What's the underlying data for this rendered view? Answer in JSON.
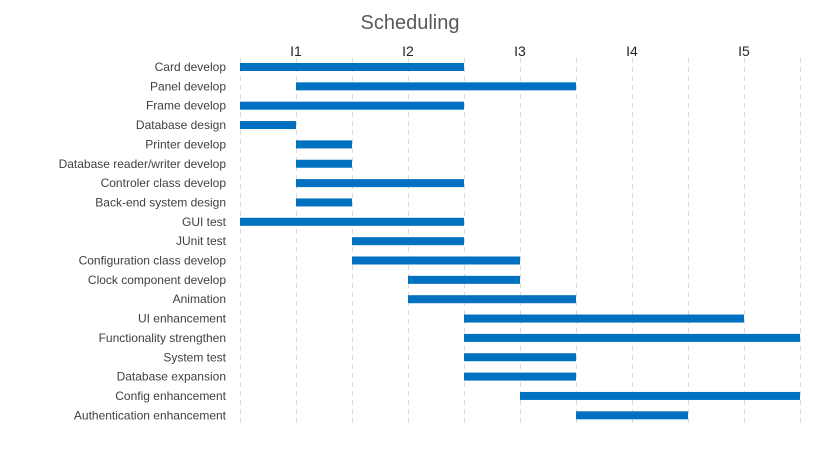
{
  "chart_data": {
    "type": "bar",
    "orientation": "horizontal-gantt",
    "title": "Scheduling",
    "xlabel": "",
    "ylabel": "",
    "x_ticks": [
      "I1",
      "I2",
      "I3",
      "I4",
      "I5"
    ],
    "xlim": [
      0,
      10
    ],
    "grid": true,
    "legend": "none",
    "bar_color": "#0070C0",
    "tasks": [
      {
        "label": "Card develop",
        "start": 0,
        "end": 4
      },
      {
        "label": "Panel develop",
        "start": 1,
        "end": 6
      },
      {
        "label": "Frame develop",
        "start": 0,
        "end": 4
      },
      {
        "label": "Database design",
        "start": 0,
        "end": 1
      },
      {
        "label": "Printer develop",
        "start": 1,
        "end": 2
      },
      {
        "label": "Database reader/writer develop",
        "start": 1,
        "end": 2
      },
      {
        "label": "Controler class develop",
        "start": 1,
        "end": 4
      },
      {
        "label": "Back-end system design",
        "start": 1,
        "end": 2
      },
      {
        "label": "GUI test",
        "start": 0,
        "end": 4
      },
      {
        "label": "JUnit test",
        "start": 2,
        "end": 4
      },
      {
        "label": "Configuration class develop",
        "start": 2,
        "end": 5
      },
      {
        "label": "Clock component develop",
        "start": 3,
        "end": 5
      },
      {
        "label": "Animation",
        "start": 3,
        "end": 6
      },
      {
        "label": "UI enhancement",
        "start": 4,
        "end": 9
      },
      {
        "label": "Functionality strengthen",
        "start": 4,
        "end": 10
      },
      {
        "label": "System test",
        "start": 4,
        "end": 6
      },
      {
        "label": "Database expansion",
        "start": 4,
        "end": 6
      },
      {
        "label": "Config enhancement",
        "start": 5,
        "end": 10
      },
      {
        "label": "Authentication enhancement",
        "start": 6,
        "end": 8
      }
    ]
  }
}
